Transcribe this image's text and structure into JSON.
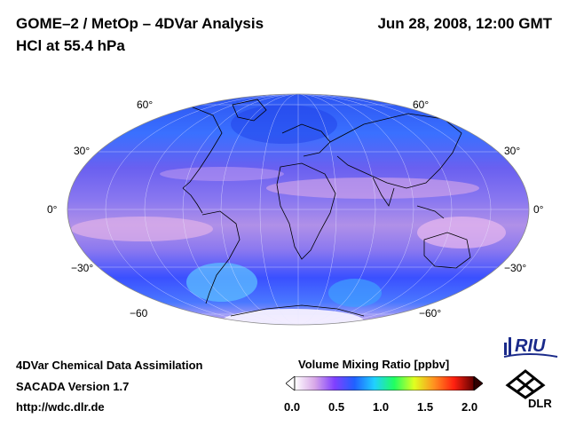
{
  "header": {
    "title": "GOME–2 / MetOp – 4DVar Analysis",
    "subtitle": "HCl at 55.4 hPa",
    "datetime": "Jun 28, 2008, 12:00 GMT"
  },
  "map": {
    "projection": "Mollweide",
    "lat_labels_left": [
      "60°",
      "30°",
      "0°",
      "−30°",
      "−60"
    ],
    "lat_labels_right": [
      "60°",
      "30°",
      "0°",
      "−30°",
      "−60°"
    ]
  },
  "footer": {
    "line1": "4DVar Chemical Data Assimilation",
    "line2": "SACADA Version 1.7",
    "line3": "http://wdc.dlr.de"
  },
  "colorbar": {
    "title": "Volume Mixing Ratio [ppbv]",
    "ticks": [
      "0.0",
      "0.5",
      "1.0",
      "1.5",
      "2.0"
    ],
    "colors": [
      "#ffffff",
      "#d8a8e8",
      "#8040ff",
      "#2060ff",
      "#20d0ff",
      "#20ff60",
      "#e0ff20",
      "#ff9020",
      "#ff2010",
      "#600000"
    ]
  },
  "logos": {
    "riu": "RIU",
    "dlr": "DLR"
  }
}
